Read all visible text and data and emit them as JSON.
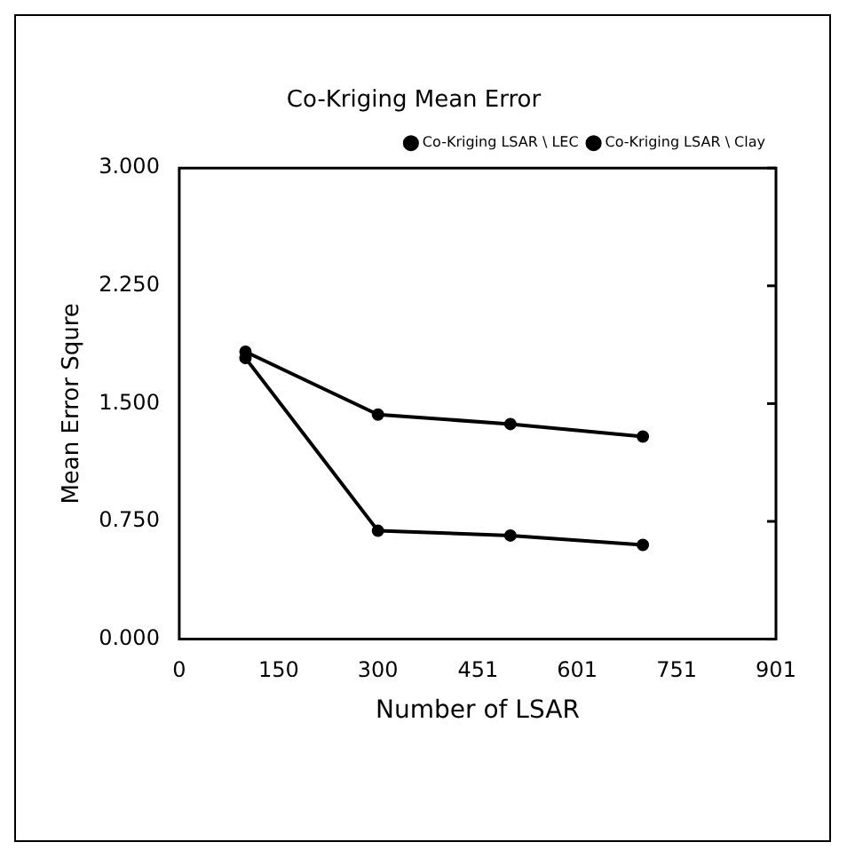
{
  "chart_data": {
    "type": "line",
    "title": "Co-Kriging Mean Error",
    "xlabel": "Number of LSAR",
    "ylabel": "Mean Error Squre",
    "x": [
      100,
      300,
      500,
      700
    ],
    "series": [
      {
        "name": "Co-Kriging LSAR \\ LEC",
        "color": "#000000",
        "values": [
          1.83,
          1.43,
          1.37,
          1.29
        ]
      },
      {
        "name": "Co-Kriging LSAR \\ Clay",
        "color": "#000000",
        "values": [
          1.79,
          0.69,
          0.66,
          0.6
        ]
      }
    ],
    "xlim": [
      0,
      901
    ],
    "xticks": [
      0,
      150,
      300,
      451,
      601,
      751,
      901
    ],
    "ylim": [
      0,
      3
    ],
    "yticks": [
      {
        "value": 0,
        "label": "0.000"
      },
      {
        "value": 0.75,
        "label": "0.750"
      },
      {
        "value": 1.5,
        "label": "1.500"
      },
      {
        "value": 2.25,
        "label": "2.250"
      },
      {
        "value": 3,
        "label": "3.000"
      }
    ],
    "grid": false,
    "legend": "top right",
    "marker": "circle",
    "line_style": "solid"
  }
}
